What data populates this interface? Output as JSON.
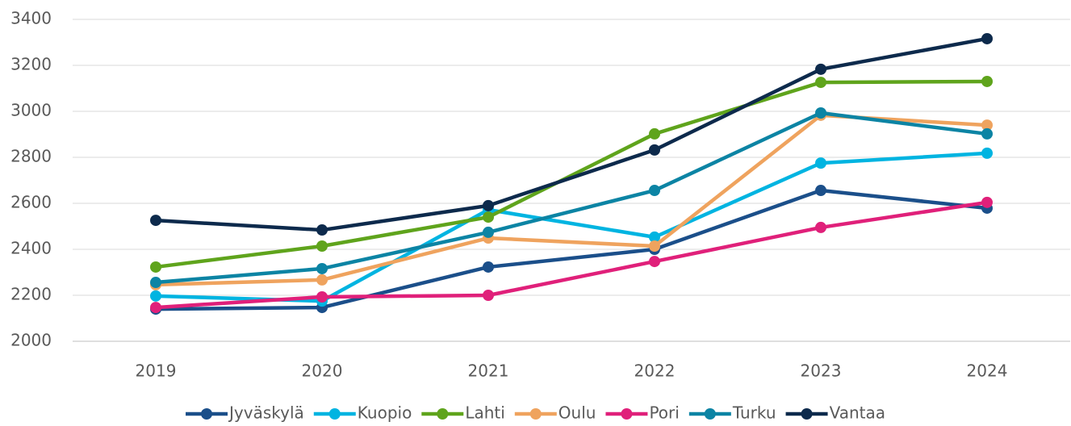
{
  "chart_data": {
    "type": "line",
    "categories": [
      "2019",
      "2020",
      "2021",
      "2022",
      "2023",
      "2024"
    ],
    "series": [
      {
        "name": "Jyväskylä",
        "color": "#1b4f8a",
        "values": [
          2140,
          2147,
          2323,
          2400,
          2656,
          2579
        ]
      },
      {
        "name": "Kuopio",
        "color": "#00b4e1",
        "values": [
          2197,
          2175,
          2572,
          2453,
          2775,
          2818
        ]
      },
      {
        "name": "Lahti",
        "color": "#5fa41c",
        "values": [
          2323,
          2414,
          2540,
          2902,
          3126,
          3130
        ]
      },
      {
        "name": "Oulu",
        "color": "#efa35e",
        "values": [
          2246,
          2267,
          2449,
          2414,
          2983,
          2940
        ]
      },
      {
        "name": "Pori",
        "color": "#e0207a",
        "values": [
          2147,
          2193,
          2200,
          2347,
          2495,
          2604
        ]
      },
      {
        "name": "Turku",
        "color": "#0c84a4",
        "values": [
          2256,
          2316,
          2474,
          2656,
          2993,
          2902
        ]
      },
      {
        "name": "Vantaa",
        "color": "#0d2a4c",
        "values": [
          2526,
          2484,
          2590,
          2832,
          3183,
          3316
        ]
      }
    ],
    "ylim": [
      2000,
      3400
    ],
    "yticks": [
      2000,
      2200,
      2400,
      2600,
      2800,
      3000,
      3200,
      3400
    ],
    "grid": true,
    "legend": "bottom"
  }
}
